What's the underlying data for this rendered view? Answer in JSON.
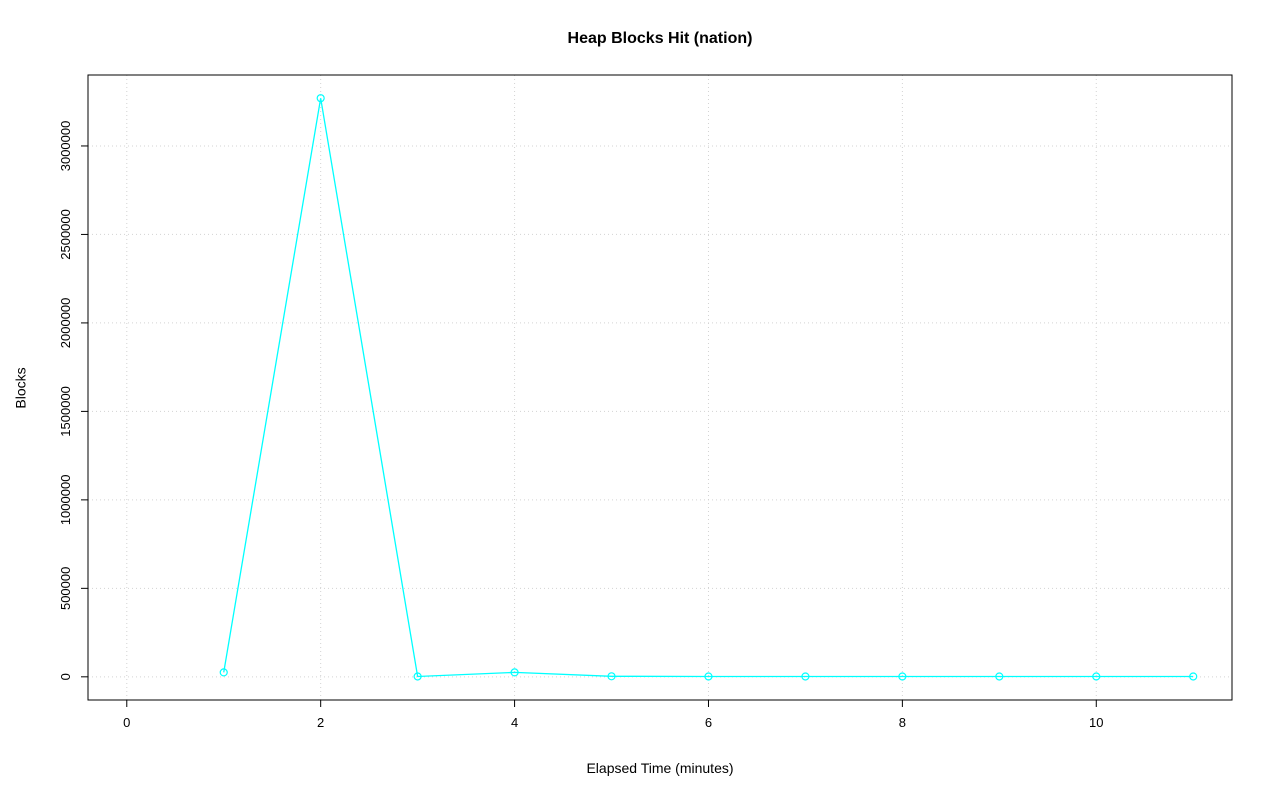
{
  "chart_data": {
    "type": "line",
    "title": "Heap Blocks Hit (nation)",
    "xlabel": "Elapsed Time (minutes)",
    "ylabel": "Blocks",
    "x": [
      1,
      2,
      3,
      4,
      5,
      6,
      7,
      8,
      9,
      10,
      11
    ],
    "y": [
      25000,
      3270000,
      2000,
      25000,
      3000,
      2000,
      2000,
      2000,
      2000,
      2000,
      2000
    ],
    "xlim": [
      -0.4,
      11.4
    ],
    "ylim": [
      -131000,
      3401000
    ],
    "x_ticks": [
      0,
      2,
      4,
      6,
      8,
      10
    ],
    "y_ticks": [
      0,
      500000,
      1000000,
      1500000,
      2000000,
      2500000,
      3000000
    ],
    "grid": true,
    "legend": "none",
    "line_color": "#00ffff",
    "marker": "open-circle",
    "grid_color": "#d3d3d3",
    "box_color": "#000000"
  }
}
